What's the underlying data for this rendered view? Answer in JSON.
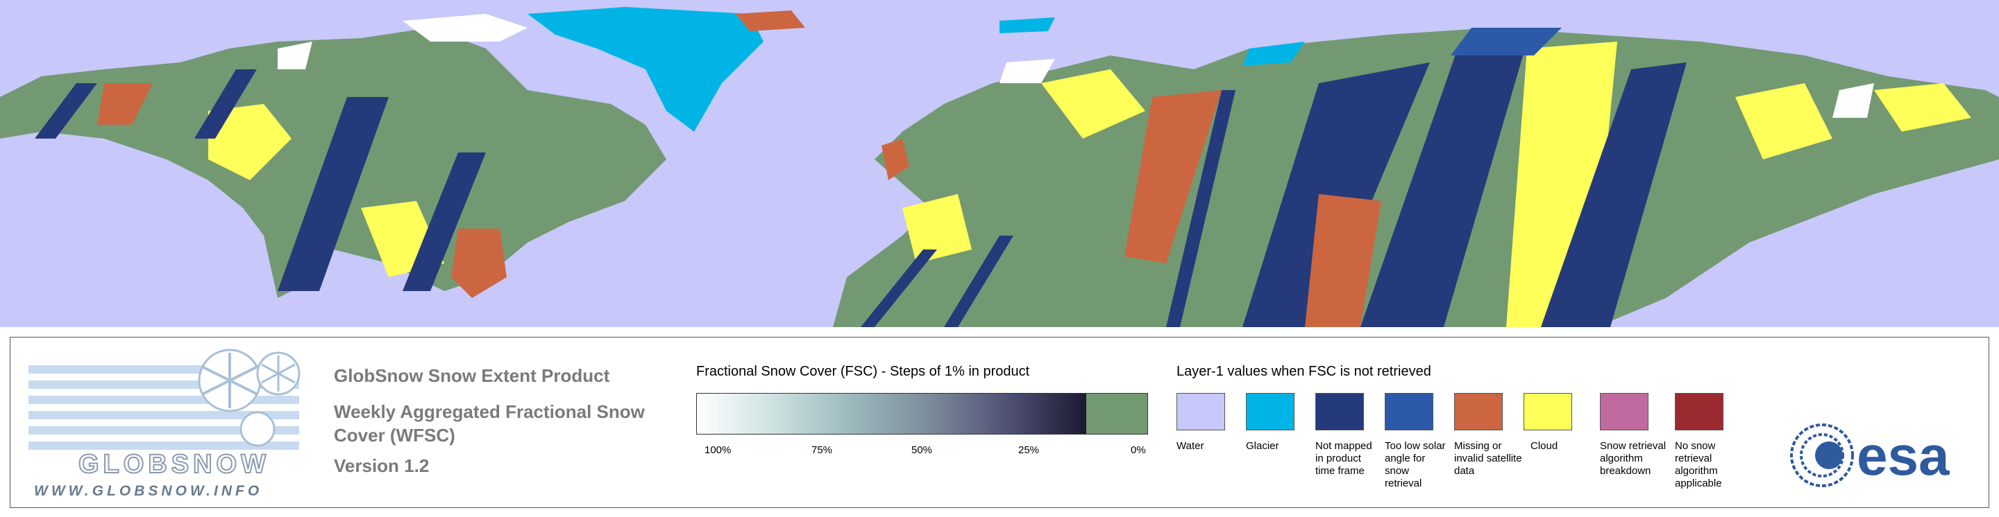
{
  "panel": {
    "logo_text": "GLOBSNOW",
    "logo_url": "WWW.GLOBSNOW.INFO",
    "title": "GlobSnow Snow Extent Product",
    "subtitle": "Weekly Aggregated Fractional Snow Cover (WFSC)",
    "version": "Version 1.2",
    "esa_text": "esa"
  },
  "fsc_legend": {
    "title": "Fractional Snow Cover (FSC) - Steps of 1% in product",
    "ticks": [
      "100%",
      "75%",
      "50%",
      "25%",
      "0%"
    ]
  },
  "layer1_legend": {
    "title": "Layer-1 values when FSC is not retrieved",
    "items": [
      {
        "label": "Water",
        "color": "#c8c8fa"
      },
      {
        "label": "Glacier",
        "color": "#00b5e6"
      },
      {
        "label": "Not mapped in product time frame",
        "color": "#253a7a"
      },
      {
        "label": "Too low solar angle for snow retrieval",
        "color": "#2c5aa8"
      },
      {
        "label": "Missing or invalid satellite data",
        "color": "#cc6640"
      },
      {
        "label": "Cloud",
        "color": "#ffff5a"
      },
      {
        "label": "Snow retrieval algorithm breakdown",
        "color": "#c06aa0"
      },
      {
        "label": "No snow retrieval algorithm applicable",
        "color": "#9a2a30"
      }
    ]
  },
  "map_colors": {
    "water": "#c8c8fa",
    "land": "#739972",
    "cloud": "#ffff5a",
    "not_mapped": "#253a7a",
    "low_solar": "#2c5aa8",
    "missing": "#cc6640",
    "glacier": "#00b5e6",
    "snow": "#ffffff"
  }
}
